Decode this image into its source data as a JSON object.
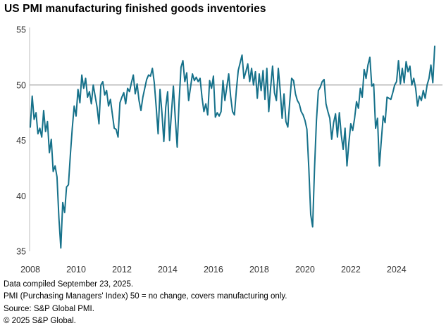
{
  "title": "US PMI manufacturing finished goods inventories",
  "footer": {
    "lines": [
      "Data compiled September 23, 2025.",
      "PMI (Purchasing Managers' Index) 50 =  no change, covers manufacturing only.",
      "Source: S&P Global PMI.",
      "© 2025 S&P Global."
    ]
  },
  "colors": {
    "line": "#16718a",
    "ref_line": "#a6a6a6",
    "axis": "#c8c8c8",
    "tick_text": "#333333",
    "title_text": "#000000",
    "footer_text": "#000000"
  },
  "chart_data": {
    "type": "line",
    "title": "US PMI manufacturing finished goods inventories",
    "ylabel": "",
    "xlabel": "",
    "ylim": [
      35,
      55
    ],
    "yticks": [
      55,
      50,
      45,
      40,
      35
    ],
    "reference_line": 50,
    "grid": "single horizontal reference line at 50 only",
    "legend_position": "none",
    "frequency": "monthly",
    "x_monthly_start": "2008-01",
    "x_monthly_end": "2025-09",
    "xticks": [
      {
        "label": "2008",
        "month_index": 0
      },
      {
        "label": "2010",
        "month_index": 24
      },
      {
        "label": "2012",
        "month_index": 48
      },
      {
        "label": "2014",
        "month_index": 72
      },
      {
        "label": "2016",
        "month_index": 96
      },
      {
        "label": "2018",
        "month_index": 120
      },
      {
        "label": "2020",
        "month_index": 144
      },
      {
        "label": "2022",
        "month_index": 168
      },
      {
        "label": "2024",
        "month_index": 192
      }
    ],
    "series_name": "US PMI manufacturing finished goods inventories index",
    "values": [
      46.2,
      49.0,
      46.9,
      47.5,
      45.6,
      46.1,
      45.3,
      47.7,
      45.8,
      46.7,
      43.9,
      45.1,
      42.2,
      42.7,
      41.7,
      38.0,
      35.3,
      39.4,
      38.5,
      40.8,
      41.0,
      43.7,
      46.1,
      48.1,
      47.2,
      49.6,
      48.4,
      50.9,
      49.7,
      50.6,
      48.9,
      49.4,
      48.3,
      50.0,
      49.0,
      48.0,
      46.5,
      50.0,
      50.3,
      49.1,
      49.5,
      48.1,
      48.7,
      47.4,
      46.1,
      46.0,
      45.3,
      48.4,
      48.9,
      49.3,
      48.3,
      49.7,
      49.4,
      50.2,
      50.9,
      49.2,
      50.1,
      48.6,
      47.7,
      48.9,
      49.7,
      50.5,
      50.9,
      50.8,
      51.5,
      50.2,
      48.0,
      45.6,
      49.6,
      47.5,
      44.9,
      48.0,
      49.4,
      45.0,
      47.5,
      49.9,
      47.0,
      44.4,
      48.5,
      51.6,
      52.2,
      50.3,
      51.1,
      48.6,
      49.8,
      51.0,
      50.4,
      50.7,
      50.3,
      50.6,
      48.9,
      47.6,
      48.3,
      47.3,
      50.4,
      49.7,
      50.8,
      47.1,
      47.5,
      47.2,
      47.6,
      50.4,
      48.6,
      49.8,
      51.0,
      49.0,
      47.6,
      47.3,
      49.5,
      51.3,
      52.0,
      52.7,
      50.6,
      51.2,
      51.9,
      50.3,
      51.5,
      50.0,
      51.2,
      48.8,
      51.0,
      49.5,
      51.3,
      48.7,
      51.5,
      47.6,
      49.8,
      51.7,
      49.3,
      48.6,
      51.5,
      49.5,
      47.0,
      49.2,
      46.7,
      46.2,
      48.5,
      50.6,
      50.4,
      49.2,
      48.6,
      48.3,
      47.6,
      47.3,
      46.8,
      46.0,
      42.5,
      38.3,
      37.2,
      42.5,
      46.8,
      49.5,
      49.8,
      50.3,
      50.5,
      48.3,
      47.6,
      47.0,
      45.1,
      46.6,
      47.4,
      45.3,
      47.5,
      45.5,
      44.2,
      46.1,
      42.7,
      44.8,
      46.5,
      45.9,
      47.0,
      48.5,
      47.9,
      49.7,
      48.9,
      51.4,
      50.6,
      51.8,
      52.5,
      49.9,
      50.1,
      46.1,
      47.0,
      42.7,
      45.0,
      47.2,
      46.6,
      48.9,
      48.8,
      48.7,
      49.3,
      50.0,
      50.3,
      52.2,
      50.1,
      51.5,
      50.2,
      52.1,
      51.2,
      51.7,
      50.0,
      50.6,
      49.7,
      48.1,
      49.0,
      48.6,
      49.5,
      48.8,
      50.0,
      50.6,
      51.8,
      50.2,
      53.5
    ]
  }
}
